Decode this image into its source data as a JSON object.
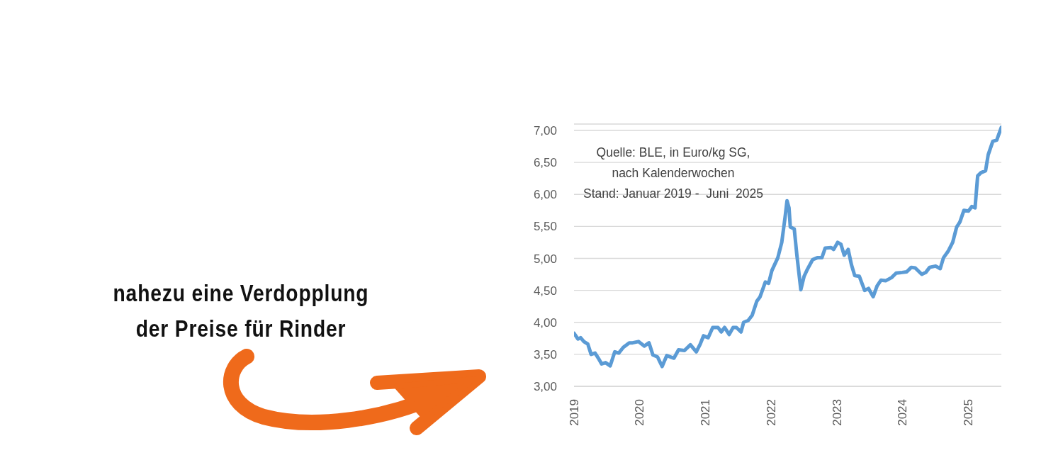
{
  "chart_data": {
    "type": "line",
    "annotations": [
      "Quelle: BLE, in Euro/kg SG,\nnach Kalenderwochen\nStand: Januar 2019 -  Juni  2025",
      "nahezu eine Verdopplung\nder Preise für Rinder"
    ],
    "x": [
      2019.0,
      2019.06,
      2019.1,
      2019.15,
      2019.21,
      2019.26,
      2019.32,
      2019.37,
      2019.42,
      2019.48,
      2019.55,
      2019.62,
      2019.68,
      2019.75,
      2019.84,
      2019.89,
      2019.98,
      2020.07,
      2020.14,
      2020.2,
      2020.27,
      2020.34,
      2020.41,
      2020.52,
      2020.59,
      2020.68,
      2020.77,
      2020.86,
      2020.92,
      2020.97,
      2021.04,
      2021.11,
      2021.19,
      2021.24,
      2021.29,
      2021.36,
      2021.42,
      2021.47,
      2021.54,
      2021.58,
      2021.65,
      2021.71,
      2021.78,
      2021.83,
      2021.91,
      2021.96,
      2022.01,
      2022.1,
      2022.16,
      2022.21,
      2022.24,
      2022.27,
      2022.29,
      2022.35,
      2022.39,
      2022.45,
      2022.5,
      2022.55,
      2022.63,
      2022.7,
      2022.77,
      2022.82,
      2022.91,
      2022.95,
      2023.01,
      2023.06,
      2023.11,
      2023.17,
      2023.22,
      2023.27,
      2023.34,
      2023.42,
      2023.48,
      2023.55,
      2023.61,
      2023.67,
      2023.74,
      2023.83,
      2023.9,
      2023.99,
      2024.06,
      2024.13,
      2024.19,
      2024.29,
      2024.35,
      2024.41,
      2024.5,
      2024.57,
      2024.62,
      2024.69,
      2024.76,
      2024.82,
      2024.87,
      2024.93,
      2025.0,
      2025.05,
      2025.1,
      2025.14,
      2025.19,
      2025.26,
      2025.3,
      2025.37,
      2025.43,
      2025.5
    ],
    "series": [
      {
        "color": "#5b9bd5",
        "values": [
          3.83,
          3.74,
          3.76,
          3.7,
          3.66,
          3.5,
          3.52,
          3.44,
          3.35,
          3.37,
          3.32,
          3.54,
          3.52,
          3.61,
          3.68,
          3.68,
          3.7,
          3.63,
          3.68,
          3.49,
          3.46,
          3.31,
          3.48,
          3.44,
          3.57,
          3.56,
          3.65,
          3.54,
          3.66,
          3.79,
          3.76,
          3.92,
          3.92,
          3.85,
          3.92,
          3.81,
          3.92,
          3.92,
          3.85,
          4.0,
          4.03,
          4.11,
          4.33,
          4.4,
          4.63,
          4.61,
          4.81,
          5.01,
          5.25,
          5.64,
          5.9,
          5.79,
          5.49,
          5.46,
          5.05,
          4.51,
          4.72,
          4.83,
          4.98,
          5.01,
          5.01,
          5.16,
          5.17,
          5.14,
          5.25,
          5.22,
          5.05,
          5.14,
          4.9,
          4.73,
          4.72,
          4.5,
          4.53,
          4.4,
          4.57,
          4.66,
          4.65,
          4.7,
          4.77,
          4.78,
          4.79,
          4.86,
          4.85,
          4.75,
          4.78,
          4.86,
          4.88,
          4.84,
          5.01,
          5.11,
          5.25,
          5.49,
          5.57,
          5.75,
          5.74,
          5.81,
          5.79,
          6.29,
          6.34,
          6.37,
          6.62,
          6.83,
          6.85,
          7.05
        ]
      }
    ],
    "xlim": [
      2019,
      2025.5
    ],
    "xticks": [
      2019,
      2020,
      2021,
      2022,
      2023,
      2024,
      2025
    ],
    "ylim": [
      3,
      7.1
    ],
    "yticks": [
      {
        "value": 3,
        "label": "3,00"
      },
      {
        "value": 3.5,
        "label": "3,50"
      },
      {
        "value": 4,
        "label": "4,00"
      },
      {
        "value": 4.5,
        "label": "4,50"
      },
      {
        "value": 5,
        "label": "5,00"
      },
      {
        "value": 5.5,
        "label": "5,50"
      },
      {
        "value": 6,
        "label": "6,00"
      },
      {
        "value": 6.5,
        "label": "6,50"
      },
      {
        "value": 7,
        "label": "7,00"
      }
    ],
    "grid": "y"
  }
}
